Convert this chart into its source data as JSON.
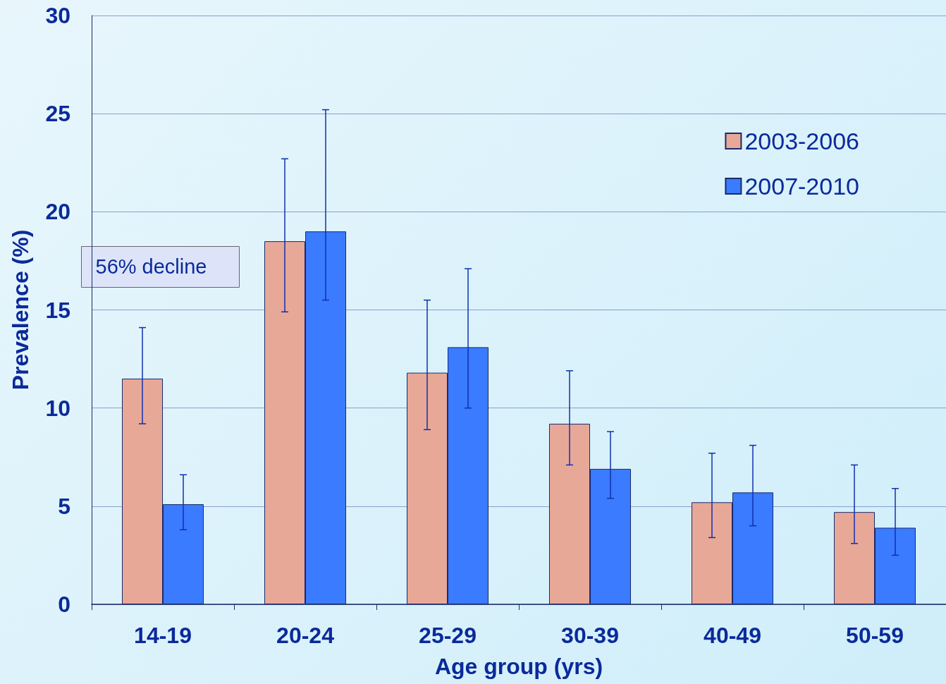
{
  "chart_data": {
    "type": "bar",
    "xlabel": "Age group (yrs)",
    "ylabel": "Prevalence (%)",
    "categories": [
      "14-19",
      "20-24",
      "25-29",
      "30-39",
      "40-49",
      "50-59"
    ],
    "series": [
      {
        "name": "2003-2006",
        "color": "#e8a898",
        "values": [
          11.5,
          18.5,
          11.8,
          9.2,
          5.2,
          4.7
        ],
        "errors": [
          [
            9.2,
            14.1
          ],
          [
            14.9,
            22.7
          ],
          [
            8.9,
            15.5
          ],
          [
            7.1,
            11.9
          ],
          [
            3.4,
            7.7
          ],
          [
            3.1,
            7.1
          ]
        ]
      },
      {
        "name": "2007-2010",
        "color": "#3a7bff",
        "values": [
          5.1,
          19.0,
          13.1,
          6.9,
          5.7,
          3.9
        ],
        "errors": [
          [
            3.8,
            6.6
          ],
          [
            15.5,
            25.2
          ],
          [
            10.0,
            17.1
          ],
          [
            5.4,
            8.8
          ],
          [
            4.0,
            8.1
          ],
          [
            2.5,
            5.9
          ]
        ]
      }
    ],
    "ylim": [
      0,
      30
    ],
    "yticks": [
      0,
      5,
      10,
      15,
      20,
      25,
      30
    ],
    "grid": "y",
    "legend": "top right",
    "annotations": [
      "56% decline"
    ]
  }
}
